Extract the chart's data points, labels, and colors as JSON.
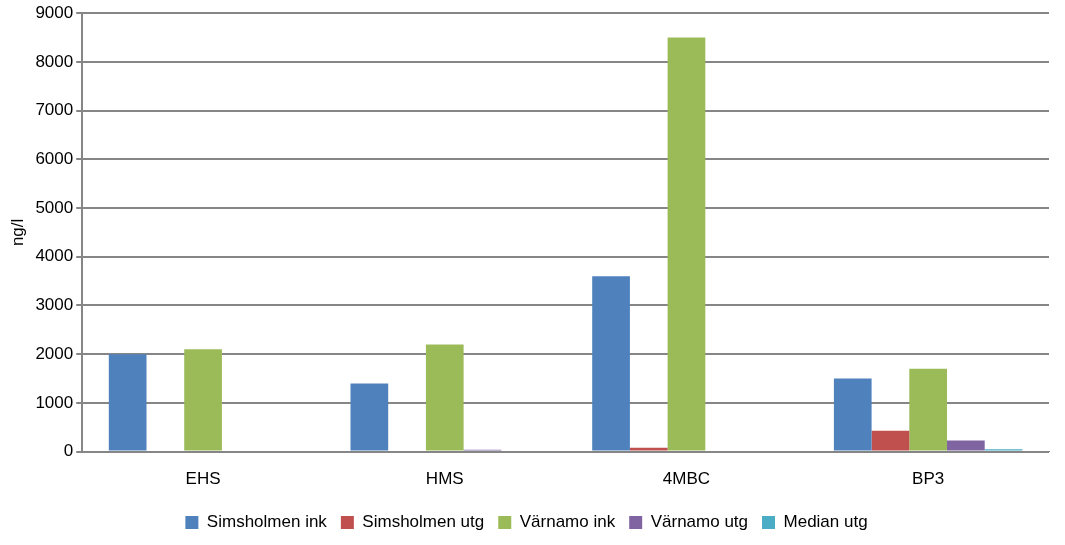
{
  "chart_data": {
    "type": "bar",
    "ylabel": "ng/l",
    "categories": [
      "EHS",
      "HMS",
      "4MBC",
      "BP3"
    ],
    "series": [
      {
        "name": "Simsholmen ink",
        "color": "#4f81bd",
        "values": [
          2000,
          1400,
          3600,
          1500
        ]
      },
      {
        "name": "Simsholmen utg",
        "color": "#c0504d",
        "values": [
          0,
          0,
          80,
          430
        ]
      },
      {
        "name": "Värnamo ink",
        "color": "#9bbb59",
        "values": [
          2100,
          2200,
          8500,
          1700
        ]
      },
      {
        "name": "Värnamo utg",
        "color": "#8064a2",
        "values": [
          0,
          40,
          0,
          230
        ]
      },
      {
        "name": "Median utg",
        "color": "#4bacc6",
        "values": [
          0,
          0,
          0,
          50
        ]
      }
    ],
    "ylim": [
      0,
      9000
    ],
    "yticks": [
      0,
      1000,
      2000,
      3000,
      4000,
      5000,
      6000,
      7000,
      8000,
      9000
    ],
    "grid": "y",
    "legend": "bottom"
  }
}
